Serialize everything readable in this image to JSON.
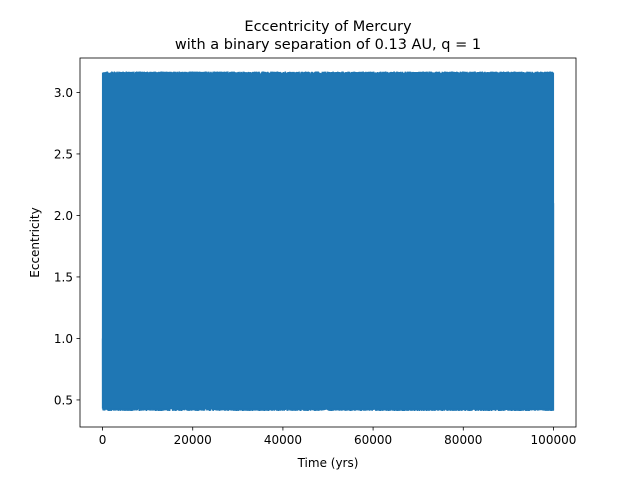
{
  "chart_data": {
    "type": "line",
    "title": "Eccentricity of Mercury",
    "subtitle": "with a binary separation of 0.13 AU, q = 1",
    "xlabel": "Time (yrs)",
    "ylabel": "Eccentricity",
    "xlim": [
      -5000,
      105000
    ],
    "ylim": [
      0.28,
      3.28
    ],
    "xticks": [
      0,
      20000,
      40000,
      60000,
      80000,
      100000
    ],
    "xtick_labels": [
      "0",
      "20000",
      "40000",
      "60000",
      "80000",
      "100000"
    ],
    "yticks": [
      0.5,
      1.0,
      1.5,
      2.0,
      2.5,
      3.0
    ],
    "ytick_labels": [
      "0.5",
      "1.0",
      "1.5",
      "2.0",
      "2.5",
      "3.0"
    ],
    "grid": false,
    "legend": false,
    "series": [
      {
        "color": "#1f77b4",
        "x_range": [
          0,
          100000
        ],
        "start_value": 1.0,
        "end_value": 2.1,
        "envelope_min": 0.41,
        "envelope_max": 3.17,
        "description_points": [
          {
            "x": 0,
            "y": 1.0
          },
          {
            "x": 200,
            "y": 3.16
          },
          {
            "x": 400,
            "y": 0.42
          },
          {
            "x": 50000,
            "y": 3.17
          },
          {
            "x": 50200,
            "y": 0.41
          },
          {
            "x": 99800,
            "y": 3.15
          },
          {
            "x": 100000,
            "y": 2.1
          }
        ]
      }
    ]
  }
}
